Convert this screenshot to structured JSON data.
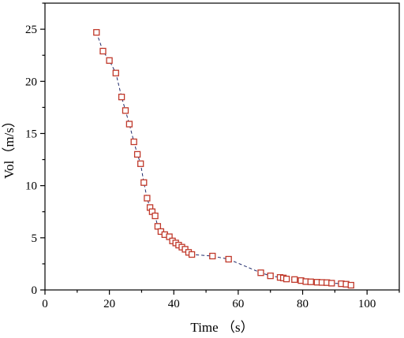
{
  "chart_data": {
    "type": "scatter",
    "title": "",
    "xlabel": "Time （s）",
    "ylabel": "Vol（m/s）",
    "xlim": [
      0,
      110
    ],
    "ylim": [
      0,
      27.5
    ],
    "xticks": [
      0,
      20,
      40,
      60,
      80,
      100
    ],
    "yticks": [
      0,
      5,
      10,
      15,
      20,
      25
    ],
    "grid": false,
    "legend": "none",
    "marker": "square",
    "marker_color": "#c0392b",
    "line_color": "#1f2a6b",
    "line_style": "dashed",
    "series": [
      {
        "x": [
          16,
          18,
          20,
          22,
          23.8,
          25,
          26.2,
          27.6,
          28.7,
          29.7,
          30.7,
          31.7,
          32.6,
          33.3,
          34.2,
          35,
          36,
          37.2,
          38.6,
          39.6,
          40.6,
          41.5,
          42.5,
          43.5,
          44.6,
          45.6,
          52,
          57,
          67,
          70,
          73,
          74,
          75,
          77.5,
          79.5,
          81,
          82.5,
          84.5,
          86,
          87.5,
          89,
          92,
          93.5,
          95
        ],
        "y": [
          24.7,
          22.9,
          22,
          20.8,
          18.5,
          17.2,
          15.9,
          14.2,
          13,
          12.1,
          10.3,
          8.8,
          7.9,
          7.5,
          7.1,
          6.1,
          5.6,
          5.3,
          5.1,
          4.7,
          4.5,
          4.3,
          4.1,
          3.9,
          3.6,
          3.4,
          3.25,
          2.95,
          1.65,
          1.35,
          1.2,
          1.15,
          1.05,
          1.0,
          0.9,
          0.8,
          0.78,
          0.74,
          0.72,
          0.7,
          0.65,
          0.6,
          0.55,
          0.45
        ]
      }
    ]
  }
}
